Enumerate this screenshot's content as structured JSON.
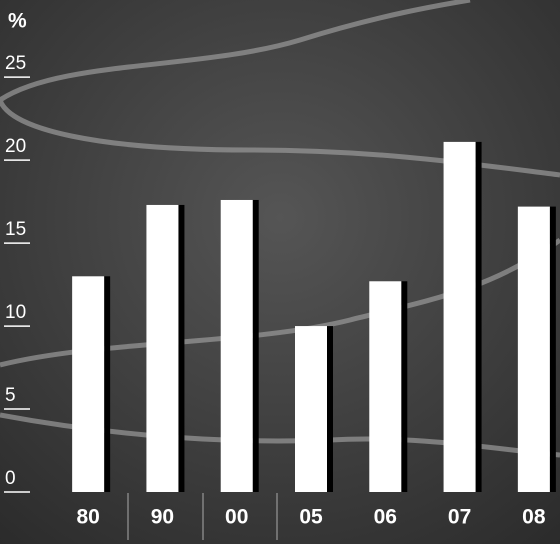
{
  "chart_data": {
    "type": "bar",
    "y_unit": "%",
    "categories": [
      "80",
      "90",
      "00",
      "05",
      "06",
      "07",
      "08"
    ],
    "values": [
      13,
      17.3,
      17.6,
      10,
      12.7,
      21.1,
      17.2
    ],
    "color": "#ffffff",
    "ylim": [
      0,
      27
    ],
    "yticks": [
      0,
      5,
      10,
      15,
      20,
      25
    ]
  }
}
